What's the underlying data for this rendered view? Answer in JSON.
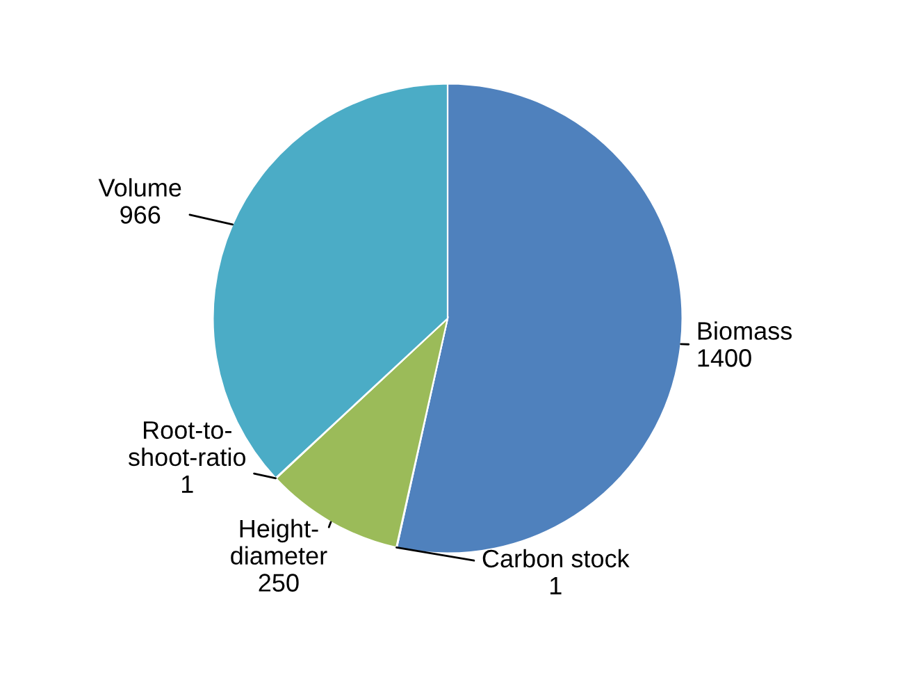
{
  "chart_data": {
    "type": "pie",
    "categories": [
      "Biomass",
      "Carbon stock",
      "Height-diameter",
      "Root-to-shoot-ratio",
      "Volume"
    ],
    "values": [
      1400,
      1,
      250,
      1,
      966
    ],
    "colors": [
      "#4f81bd",
      "#c0504d",
      "#9bbb59",
      "#8064a2",
      "#4bacc6"
    ],
    "data_labels": true,
    "legend": false
  }
}
